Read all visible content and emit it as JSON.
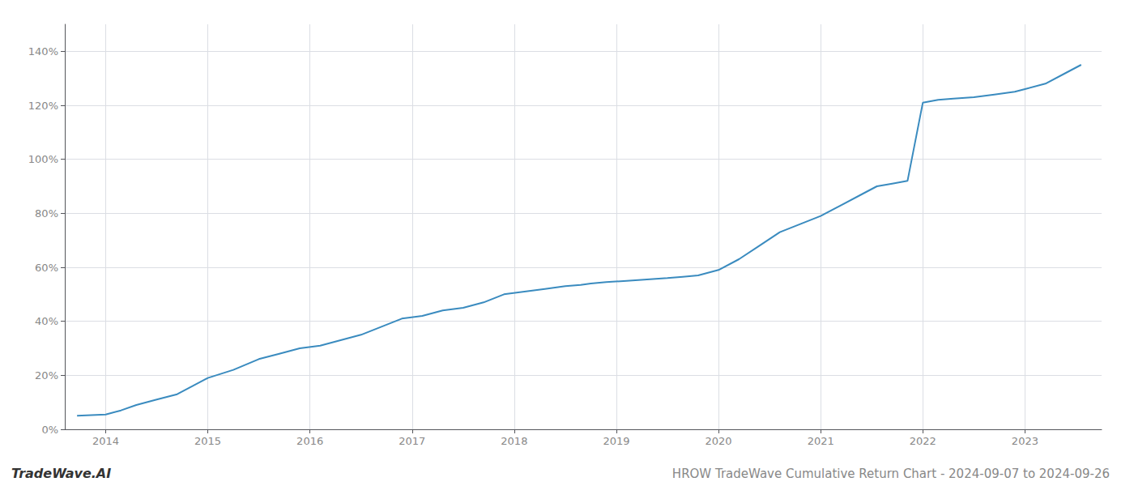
{
  "chart_data": {
    "type": "line",
    "title": "HROW TradeWave Cumulative Return Chart - 2024-09-07 to 2024-09-26",
    "annotations": [
      "TradeWave.AI"
    ],
    "x": [
      2013.72,
      2014.0,
      2014.15,
      2014.3,
      2014.5,
      2014.7,
      2014.85,
      2015.0,
      2015.25,
      2015.5,
      2015.7,
      2015.9,
      2016.1,
      2016.3,
      2016.5,
      2016.7,
      2016.9,
      2017.1,
      2017.3,
      2017.5,
      2017.7,
      2017.9,
      2018.1,
      2018.3,
      2018.5,
      2018.65,
      2018.75,
      2018.9,
      2019.1,
      2019.3,
      2019.5,
      2019.65,
      2019.8,
      2020.0,
      2020.2,
      2020.4,
      2020.6,
      2020.8,
      2021.0,
      2021.2,
      2021.4,
      2021.55,
      2021.7,
      2021.85,
      2022.0,
      2022.15,
      2022.3,
      2022.5,
      2022.7,
      2022.9,
      2023.0,
      2023.2,
      2023.4,
      2023.55
    ],
    "values": [
      5,
      5.5,
      7,
      9,
      11,
      13,
      16,
      19,
      22,
      26,
      28,
      30,
      31,
      33,
      35,
      38,
      41,
      42,
      44,
      45,
      47,
      50,
      51,
      52,
      53,
      53.5,
      54,
      54.5,
      55,
      55.5,
      56,
      56.5,
      57,
      59,
      63,
      68,
      73,
      76,
      79,
      83,
      87,
      90,
      91,
      92,
      121,
      122,
      122.5,
      123,
      124,
      125,
      126,
      128,
      132,
      135
    ],
    "color": "#3a8bbf",
    "xlim": [
      2013.6,
      2023.75
    ],
    "ylim": [
      0,
      150
    ],
    "xticks": [
      2014,
      2015,
      2016,
      2017,
      2018,
      2019,
      2020,
      2021,
      2022,
      2023
    ],
    "yticks": [
      {
        "value": 0,
        "label": "0%"
      },
      {
        "value": 20,
        "label": "20%"
      },
      {
        "value": 40,
        "label": "40%"
      },
      {
        "value": 60,
        "label": "60%"
      },
      {
        "value": 80,
        "label": "80%"
      },
      {
        "value": 100,
        "label": "100%"
      },
      {
        "value": 120,
        "label": "120%"
      },
      {
        "value": 140,
        "label": "140%"
      }
    ],
    "grid": true
  }
}
